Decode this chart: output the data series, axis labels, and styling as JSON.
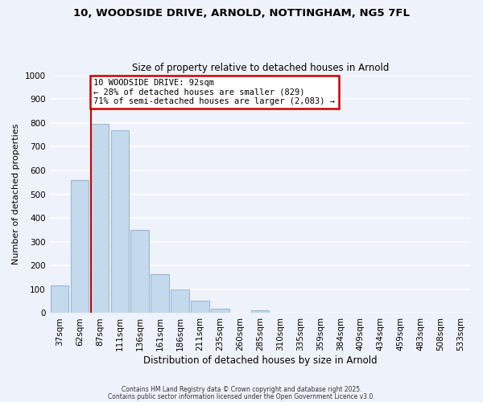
{
  "title_line1": "10, WOODSIDE DRIVE, ARNOLD, NOTTINGHAM, NG5 7FL",
  "title_line2": "Size of property relative to detached houses in Arnold",
  "xlabel": "Distribution of detached houses by size in Arnold",
  "ylabel": "Number of detached properties",
  "bar_labels": [
    "37sqm",
    "62sqm",
    "87sqm",
    "111sqm",
    "136sqm",
    "161sqm",
    "186sqm",
    "211sqm",
    "235sqm",
    "260sqm",
    "285sqm",
    "310sqm",
    "335sqm",
    "359sqm",
    "384sqm",
    "409sqm",
    "434sqm",
    "459sqm",
    "483sqm",
    "508sqm",
    "533sqm"
  ],
  "bar_heights": [
    115,
    560,
    795,
    770,
    350,
    165,
    98,
    52,
    17,
    0,
    12,
    0,
    0,
    0,
    0,
    0,
    0,
    0,
    0,
    0,
    0
  ],
  "bar_color": "#c5d9ec",
  "bar_edge_color": "#9ab8d4",
  "vline_index": 2,
  "vline_color": "#cc0000",
  "ylim": [
    0,
    1000
  ],
  "yticks": [
    0,
    100,
    200,
    300,
    400,
    500,
    600,
    700,
    800,
    900,
    1000
  ],
  "annotation_box_text": "10 WOODSIDE DRIVE: 92sqm\n← 28% of detached houses are smaller (829)\n71% of semi-detached houses are larger (2,083) →",
  "annotation_box_color": "#cc0000",
  "annotation_box_facecolor": "#ffffff",
  "footer_line1": "Contains HM Land Registry data © Crown copyright and database right 2025.",
  "footer_line2": "Contains public sector information licensed under the Open Government Licence v3.0.",
  "background_color": "#eef2fa",
  "grid_color": "#ffffff"
}
